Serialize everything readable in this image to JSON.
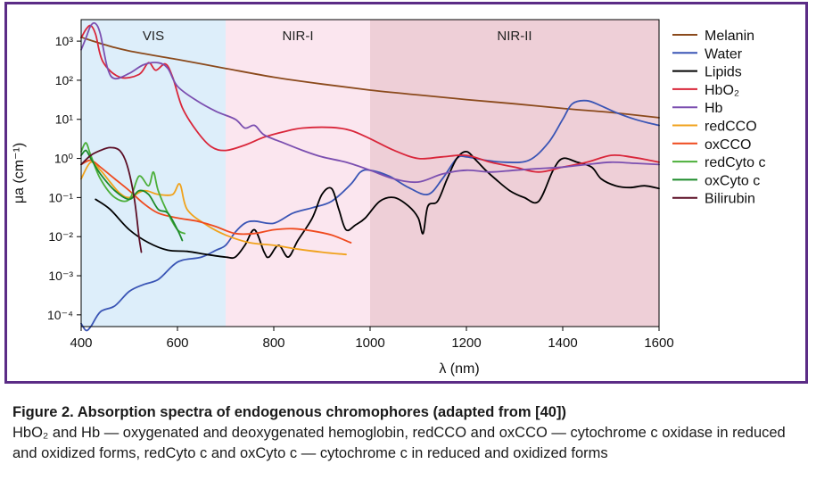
{
  "caption": {
    "title": "Figure 2. Absorption spectra of endogenous chromophores (adapted from [40])",
    "text": "HbO₂ and Hb — oxygenated and deoxygenated hemoglobin, redCCO and oxCCO — cytochrome c oxidase in reduced and oxidized forms, redCyto c and oxCyto c — cytochrome c in reduced and oxidized forms"
  },
  "chart_data": {
    "type": "line",
    "xlabel": "λ (nm)",
    "ylabel": "μa (cm⁻¹)",
    "xlim": [
      400,
      1600
    ],
    "ylim_log10": [
      -4.3,
      3.55
    ],
    "y_scale": "log",
    "grid": false,
    "legend_position": "right",
    "x_ticks": [
      400,
      600,
      800,
      1000,
      1200,
      1400,
      1600
    ],
    "y_ticks": [
      {
        "exp": 3,
        "label": "10³"
      },
      {
        "exp": 2,
        "label": "10²"
      },
      {
        "exp": 1,
        "label": "10¹"
      },
      {
        "exp": 0,
        "label": "10⁰"
      },
      {
        "exp": -1,
        "label": "10⁻¹"
      },
      {
        "exp": -2,
        "label": "10⁻²"
      },
      {
        "exp": -3,
        "label": "10⁻³"
      },
      {
        "exp": -4,
        "label": "10⁻⁴"
      }
    ],
    "regions": [
      {
        "label": "VIS",
        "x0": 400,
        "x1": 700,
        "color": "#ddeefa"
      },
      {
        "label": "NIR-I",
        "x0": 700,
        "x1": 1000,
        "color": "#fbe6ef"
      },
      {
        "label": "NIR-II",
        "x0": 1000,
        "x1": 1600,
        "color": "#eecfd7"
      }
    ],
    "series": [
      {
        "name": "Melanin",
        "color": "#8b4a1c",
        "points": [
          [
            400,
            1260
          ],
          [
            450,
            800
          ],
          [
            500,
            560
          ],
          [
            600,
            340
          ],
          [
            700,
            200
          ],
          [
            800,
            120
          ],
          [
            900,
            80
          ],
          [
            1000,
            56
          ],
          [
            1100,
            42
          ],
          [
            1200,
            32
          ],
          [
            1300,
            25
          ],
          [
            1400,
            19
          ],
          [
            1500,
            15
          ],
          [
            1600,
            11
          ]
        ]
      },
      {
        "name": "Water",
        "color": "#3a55b5",
        "points": [
          [
            400,
            6e-05
          ],
          [
            410,
            4e-05
          ],
          [
            420,
            5e-05
          ],
          [
            440,
            0.00012
          ],
          [
            470,
            0.00017
          ],
          [
            500,
            0.0004
          ],
          [
            530,
            0.0006
          ],
          [
            560,
            0.0008
          ],
          [
            590,
            0.0018
          ],
          [
            610,
            0.0025
          ],
          [
            650,
            0.003
          ],
          [
            680,
            0.0045
          ],
          [
            700,
            0.006
          ],
          [
            720,
            0.013
          ],
          [
            740,
            0.022
          ],
          [
            760,
            0.025
          ],
          [
            800,
            0.022
          ],
          [
            840,
            0.04
          ],
          [
            880,
            0.055
          ],
          [
            920,
            0.08
          ],
          [
            960,
            0.22
          ],
          [
            980,
            0.45
          ],
          [
            1000,
            0.5
          ],
          [
            1040,
            0.35
          ],
          [
            1080,
            0.18
          ],
          [
            1120,
            0.12
          ],
          [
            1150,
            0.3
          ],
          [
            1180,
            1.0
          ],
          [
            1200,
            1.1
          ],
          [
            1240,
            0.9
          ],
          [
            1280,
            0.8
          ],
          [
            1330,
            0.9
          ],
          [
            1370,
            2.5
          ],
          [
            1400,
            10
          ],
          [
            1420,
            25
          ],
          [
            1450,
            30
          ],
          [
            1480,
            22
          ],
          [
            1510,
            15
          ],
          [
            1550,
            10
          ],
          [
            1580,
            8
          ],
          [
            1600,
            7
          ]
        ]
      },
      {
        "name": "Lipids",
        "color": "#000000",
        "points": [
          [
            430,
            0.09
          ],
          [
            460,
            0.05
          ],
          [
            500,
            0.015
          ],
          [
            540,
            0.007
          ],
          [
            580,
            0.0045
          ],
          [
            620,
            0.0042
          ],
          [
            660,
            0.0035
          ],
          [
            700,
            0.003
          ],
          [
            720,
            0.003
          ],
          [
            740,
            0.006
          ],
          [
            760,
            0.015
          ],
          [
            780,
            0.004
          ],
          [
            790,
            0.003
          ],
          [
            810,
            0.006
          ],
          [
            830,
            0.003
          ],
          [
            850,
            0.008
          ],
          [
            880,
            0.03
          ],
          [
            900,
            0.12
          ],
          [
            920,
            0.17
          ],
          [
            935,
            0.05
          ],
          [
            950,
            0.015
          ],
          [
            970,
            0.02
          ],
          [
            990,
            0.03
          ],
          [
            1020,
            0.08
          ],
          [
            1050,
            0.1
          ],
          [
            1080,
            0.06
          ],
          [
            1100,
            0.03
          ],
          [
            1110,
            0.012
          ],
          [
            1120,
            0.06
          ],
          [
            1140,
            0.08
          ],
          [
            1160,
            0.3
          ],
          [
            1180,
            1.0
          ],
          [
            1200,
            1.5
          ],
          [
            1220,
            0.9
          ],
          [
            1240,
            0.5
          ],
          [
            1260,
            0.3
          ],
          [
            1290,
            0.15
          ],
          [
            1320,
            0.1
          ],
          [
            1350,
            0.08
          ],
          [
            1380,
            0.5
          ],
          [
            1400,
            1.0
          ],
          [
            1430,
            0.8
          ],
          [
            1460,
            0.6
          ],
          [
            1480,
            0.3
          ],
          [
            1510,
            0.2
          ],
          [
            1540,
            0.18
          ],
          [
            1570,
            0.2
          ],
          [
            1600,
            0.17
          ]
        ]
      },
      {
        "name": "HbO₂",
        "color": "#d9263a",
        "points": [
          [
            400,
            1200
          ],
          [
            410,
            2000
          ],
          [
            420,
            2500
          ],
          [
            430,
            1500
          ],
          [
            445,
            300
          ],
          [
            480,
            120
          ],
          [
            520,
            140
          ],
          [
            540,
            280
          ],
          [
            555,
            180
          ],
          [
            575,
            260
          ],
          [
            590,
            120
          ],
          [
            610,
            20
          ],
          [
            640,
            5
          ],
          [
            670,
            2
          ],
          [
            700,
            1.6
          ],
          [
            740,
            2.2
          ],
          [
            780,
            3.5
          ],
          [
            820,
            4.8
          ],
          [
            860,
            6
          ],
          [
            920,
            6.2
          ],
          [
            960,
            5.2
          ],
          [
            1000,
            3.2
          ],
          [
            1050,
            1.6
          ],
          [
            1100,
            1.0
          ],
          [
            1150,
            1.1
          ],
          [
            1200,
            1.2
          ],
          [
            1250,
            0.8
          ],
          [
            1300,
            0.6
          ],
          [
            1350,
            0.45
          ],
          [
            1400,
            0.6
          ],
          [
            1450,
            0.8
          ],
          [
            1500,
            1.2
          ],
          [
            1540,
            1.1
          ],
          [
            1580,
            0.9
          ],
          [
            1600,
            0.8
          ]
        ]
      },
      {
        "name": "Hb",
        "color": "#7b4fb0",
        "points": [
          [
            400,
            600
          ],
          [
            410,
            1200
          ],
          [
            420,
            2500
          ],
          [
            430,
            2800
          ],
          [
            440,
            1500
          ],
          [
            455,
            200
          ],
          [
            470,
            110
          ],
          [
            500,
            150
          ],
          [
            530,
            250
          ],
          [
            560,
            280
          ],
          [
            580,
            200
          ],
          [
            600,
            70
          ],
          [
            640,
            30
          ],
          [
            680,
            16
          ],
          [
            720,
            10
          ],
          [
            740,
            6
          ],
          [
            760,
            7
          ],
          [
            780,
            4
          ],
          [
            820,
            2.5
          ],
          [
            860,
            1.6
          ],
          [
            900,
            1.1
          ],
          [
            950,
            0.8
          ],
          [
            1000,
            0.5
          ],
          [
            1050,
            0.3
          ],
          [
            1100,
            0.25
          ],
          [
            1150,
            0.4
          ],
          [
            1200,
            0.5
          ],
          [
            1250,
            0.45
          ],
          [
            1300,
            0.5
          ],
          [
            1350,
            0.55
          ],
          [
            1400,
            0.6
          ],
          [
            1450,
            0.7
          ],
          [
            1500,
            0.8
          ],
          [
            1550,
            0.75
          ],
          [
            1600,
            0.7
          ]
        ]
      },
      {
        "name": "redCCO",
        "color": "#f0a21c",
        "points": [
          [
            400,
            0.3
          ],
          [
            420,
            0.8
          ],
          [
            440,
            0.5
          ],
          [
            460,
            0.25
          ],
          [
            480,
            0.13
          ],
          [
            500,
            0.1
          ],
          [
            530,
            0.15
          ],
          [
            560,
            0.12
          ],
          [
            590,
            0.12
          ],
          [
            605,
            0.22
          ],
          [
            620,
            0.05
          ],
          [
            660,
            0.02
          ],
          [
            700,
            0.011
          ],
          [
            750,
            0.007
          ],
          [
            800,
            0.006
          ],
          [
            850,
            0.0048
          ],
          [
            900,
            0.004
          ],
          [
            950,
            0.0035
          ]
        ]
      },
      {
        "name": "oxCCO",
        "color": "#ef4a1e",
        "points": [
          [
            400,
            0.7
          ],
          [
            420,
            0.9
          ],
          [
            440,
            0.6
          ],
          [
            470,
            0.3
          ],
          [
            500,
            0.15
          ],
          [
            530,
            0.07
          ],
          [
            560,
            0.04
          ],
          [
            600,
            0.03
          ],
          [
            640,
            0.025
          ],
          [
            680,
            0.018
          ],
          [
            720,
            0.012
          ],
          [
            760,
            0.012
          ],
          [
            800,
            0.015
          ],
          [
            840,
            0.016
          ],
          [
            880,
            0.014
          ],
          [
            920,
            0.011
          ],
          [
            960,
            0.007
          ]
        ]
      },
      {
        "name": "redCyto c",
        "color": "#4caf3a",
        "points": [
          [
            400,
            1.5
          ],
          [
            410,
            2.5
          ],
          [
            420,
            1.2
          ],
          [
            440,
            0.3
          ],
          [
            470,
            0.1
          ],
          [
            500,
            0.09
          ],
          [
            520,
            0.35
          ],
          [
            540,
            0.2
          ],
          [
            550,
            0.45
          ],
          [
            560,
            0.15
          ],
          [
            580,
            0.04
          ],
          [
            600,
            0.015
          ],
          [
            615,
            0.012
          ]
        ]
      },
      {
        "name": "oxCyto c",
        "color": "#1c8a2a",
        "points": [
          [
            400,
            1.2
          ],
          [
            410,
            1.6
          ],
          [
            420,
            1.0
          ],
          [
            440,
            0.4
          ],
          [
            470,
            0.15
          ],
          [
            500,
            0.09
          ],
          [
            520,
            0.15
          ],
          [
            540,
            0.12
          ],
          [
            560,
            0.05
          ],
          [
            580,
            0.04
          ],
          [
            600,
            0.015
          ],
          [
            610,
            0.008
          ]
        ]
      },
      {
        "name": "Bilirubin",
        "color": "#5c0f26",
        "points": [
          [
            400,
            0.7
          ],
          [
            420,
            1.2
          ],
          [
            440,
            1.6
          ],
          [
            460,
            1.9
          ],
          [
            480,
            1.6
          ],
          [
            495,
            0.7
          ],
          [
            510,
            0.1
          ],
          [
            520,
            0.01
          ],
          [
            525,
            0.004
          ]
        ]
      }
    ]
  }
}
